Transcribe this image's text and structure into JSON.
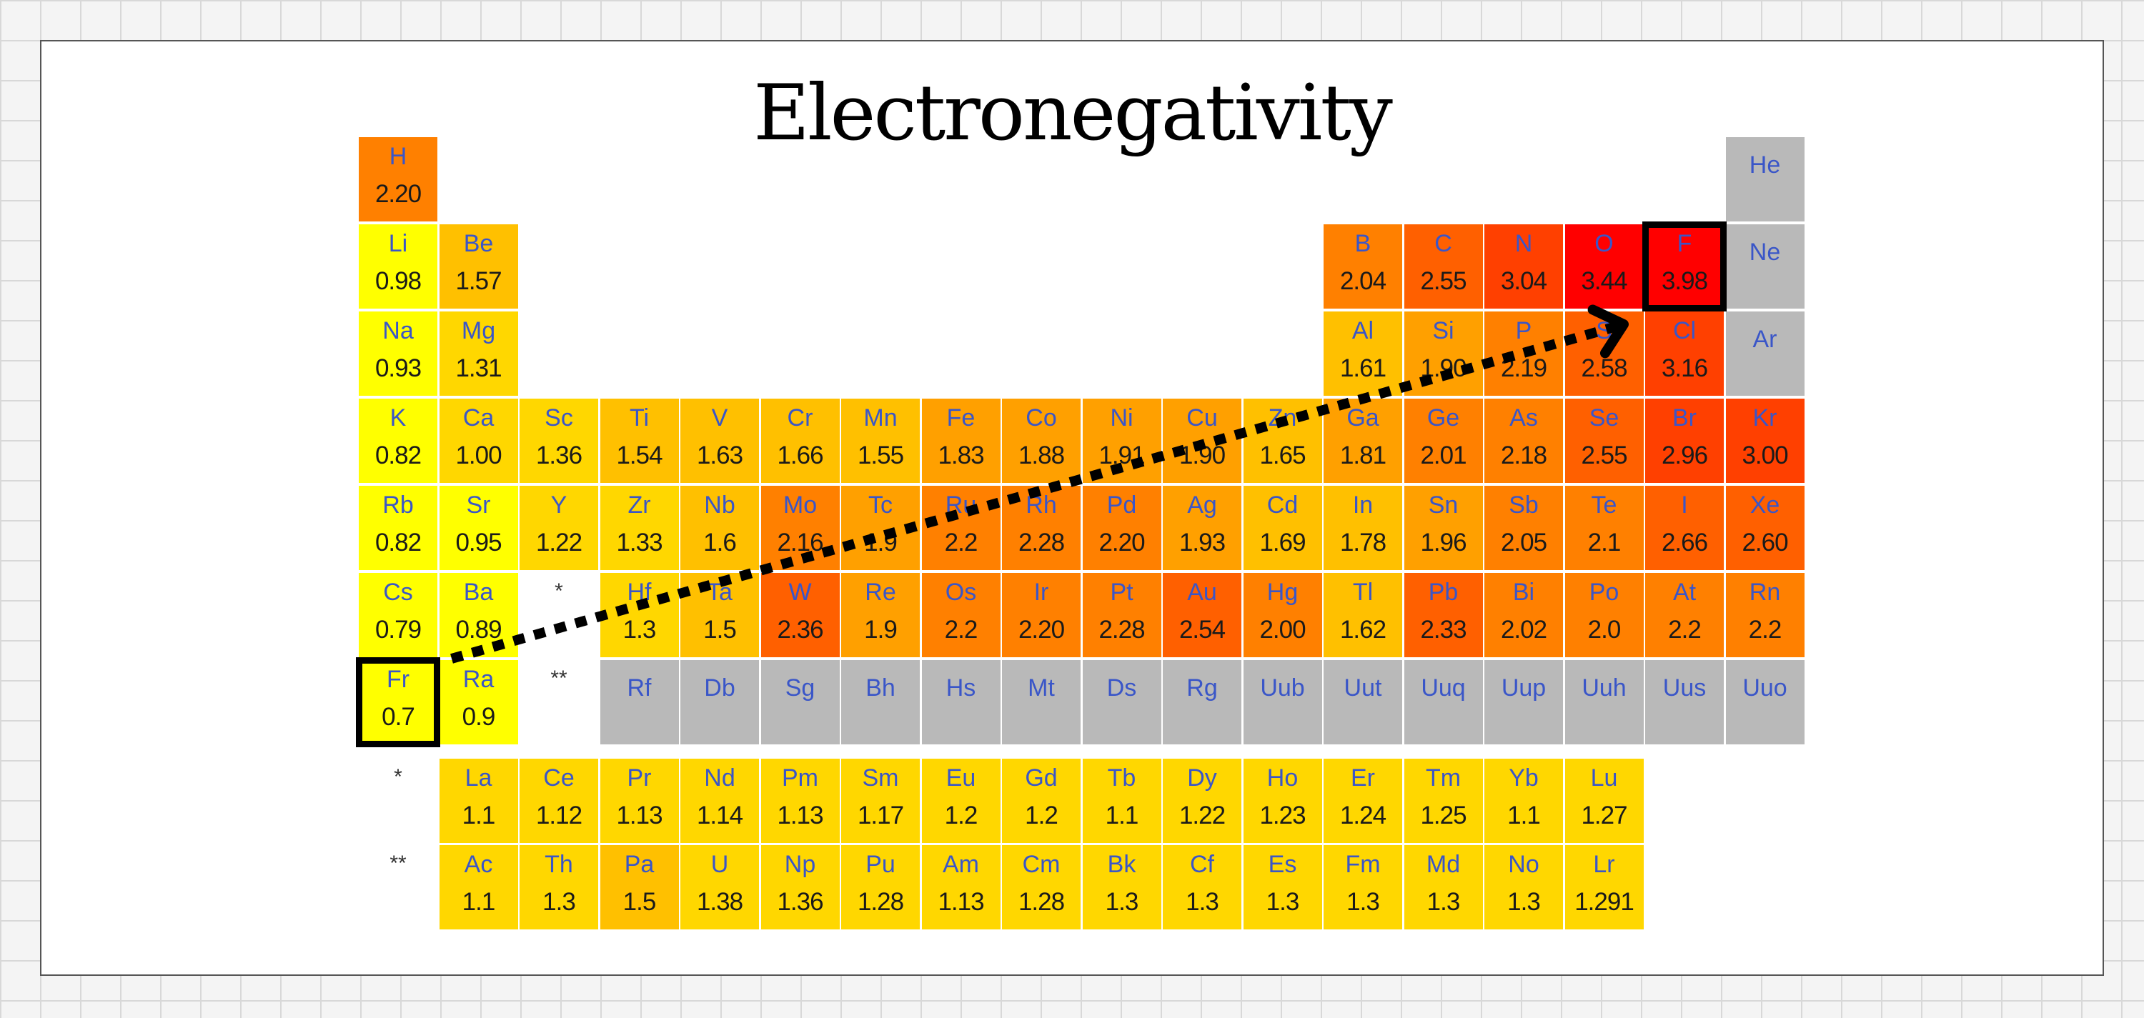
{
  "title": "Electronegativity",
  "colors": {
    "no_data": "#b9b9b9",
    "symbol_text": "#3a56c8",
    "value_text": "#1a1a1a",
    "scale": [
      "#ffff00",
      "#ffd700",
      "#ffc000",
      "#ffa000",
      "#ff8000",
      "#ff6000",
      "#ff4000",
      "#ff0000"
    ]
  },
  "markers": {
    "lanthanide": "*",
    "actinide": "**"
  },
  "highlights": [
    "Fr",
    "F"
  ],
  "arrow": {
    "from": "Fr",
    "to": "F",
    "style": "dotted"
  },
  "elements": [
    {
      "s": "H",
      "v": "2.20",
      "r": 1,
      "c": 1
    },
    {
      "s": "He",
      "v": "",
      "r": 1,
      "c": 18
    },
    {
      "s": "Li",
      "v": "0.98",
      "r": 2,
      "c": 1
    },
    {
      "s": "Be",
      "v": "1.57",
      "r": 2,
      "c": 2
    },
    {
      "s": "B",
      "v": "2.04",
      "r": 2,
      "c": 13
    },
    {
      "s": "C",
      "v": "2.55",
      "r": 2,
      "c": 14
    },
    {
      "s": "N",
      "v": "3.04",
      "r": 2,
      "c": 15
    },
    {
      "s": "O",
      "v": "3.44",
      "r": 2,
      "c": 16
    },
    {
      "s": "F",
      "v": "3.98",
      "r": 2,
      "c": 17
    },
    {
      "s": "Ne",
      "v": "",
      "r": 2,
      "c": 18
    },
    {
      "s": "Na",
      "v": "0.93",
      "r": 3,
      "c": 1
    },
    {
      "s": "Mg",
      "v": "1.31",
      "r": 3,
      "c": 2
    },
    {
      "s": "Al",
      "v": "1.61",
      "r": 3,
      "c": 13
    },
    {
      "s": "Si",
      "v": "1.90",
      "r": 3,
      "c": 14
    },
    {
      "s": "P",
      "v": "2.19",
      "r": 3,
      "c": 15
    },
    {
      "s": "S",
      "v": "2.58",
      "r": 3,
      "c": 16
    },
    {
      "s": "Cl",
      "v": "3.16",
      "r": 3,
      "c": 17
    },
    {
      "s": "Ar",
      "v": "",
      "r": 3,
      "c": 18
    },
    {
      "s": "K",
      "v": "0.82",
      "r": 4,
      "c": 1
    },
    {
      "s": "Ca",
      "v": "1.00",
      "r": 4,
      "c": 2
    },
    {
      "s": "Sc",
      "v": "1.36",
      "r": 4,
      "c": 3
    },
    {
      "s": "Ti",
      "v": "1.54",
      "r": 4,
      "c": 4
    },
    {
      "s": "V",
      "v": "1.63",
      "r": 4,
      "c": 5
    },
    {
      "s": "Cr",
      "v": "1.66",
      "r": 4,
      "c": 6
    },
    {
      "s": "Mn",
      "v": "1.55",
      "r": 4,
      "c": 7
    },
    {
      "s": "Fe",
      "v": "1.83",
      "r": 4,
      "c": 8
    },
    {
      "s": "Co",
      "v": "1.88",
      "r": 4,
      "c": 9
    },
    {
      "s": "Ni",
      "v": "1.91",
      "r": 4,
      "c": 10
    },
    {
      "s": "Cu",
      "v": "1.90",
      "r": 4,
      "c": 11
    },
    {
      "s": "Zn",
      "v": "1.65",
      "r": 4,
      "c": 12
    },
    {
      "s": "Ga",
      "v": "1.81",
      "r": 4,
      "c": 13
    },
    {
      "s": "Ge",
      "v": "2.01",
      "r": 4,
      "c": 14
    },
    {
      "s": "As",
      "v": "2.18",
      "r": 4,
      "c": 15
    },
    {
      "s": "Se",
      "v": "2.55",
      "r": 4,
      "c": 16
    },
    {
      "s": "Br",
      "v": "2.96",
      "r": 4,
      "c": 17
    },
    {
      "s": "Kr",
      "v": "3.00",
      "r": 4,
      "c": 18
    },
    {
      "s": "Rb",
      "v": "0.82",
      "r": 5,
      "c": 1
    },
    {
      "s": "Sr",
      "v": "0.95",
      "r": 5,
      "c": 2
    },
    {
      "s": "Y",
      "v": "1.22",
      "r": 5,
      "c": 3
    },
    {
      "s": "Zr",
      "v": "1.33",
      "r": 5,
      "c": 4
    },
    {
      "s": "Nb",
      "v": "1.6",
      "r": 5,
      "c": 5
    },
    {
      "s": "Mo",
      "v": "2.16",
      "r": 5,
      "c": 6
    },
    {
      "s": "Tc",
      "v": "1.9",
      "r": 5,
      "c": 7
    },
    {
      "s": "Ru",
      "v": "2.2",
      "r": 5,
      "c": 8
    },
    {
      "s": "Rh",
      "v": "2.28",
      "r": 5,
      "c": 9
    },
    {
      "s": "Pd",
      "v": "2.20",
      "r": 5,
      "c": 10
    },
    {
      "s": "Ag",
      "v": "1.93",
      "r": 5,
      "c": 11
    },
    {
      "s": "Cd",
      "v": "1.69",
      "r": 5,
      "c": 12
    },
    {
      "s": "In",
      "v": "1.78",
      "r": 5,
      "c": 13
    },
    {
      "s": "Sn",
      "v": "1.96",
      "r": 5,
      "c": 14
    },
    {
      "s": "Sb",
      "v": "2.05",
      "r": 5,
      "c": 15
    },
    {
      "s": "Te",
      "v": "2.1",
      "r": 5,
      "c": 16
    },
    {
      "s": "I",
      "v": "2.66",
      "r": 5,
      "c": 17
    },
    {
      "s": "Xe",
      "v": "2.60",
      "r": 5,
      "c": 18
    },
    {
      "s": "Cs",
      "v": "0.79",
      "r": 6,
      "c": 1
    },
    {
      "s": "Ba",
      "v": "0.89",
      "r": 6,
      "c": 2
    },
    {
      "s": "Hf",
      "v": "1.3",
      "r": 6,
      "c": 4
    },
    {
      "s": "Ta",
      "v": "1.5",
      "r": 6,
      "c": 5
    },
    {
      "s": "W",
      "v": "2.36",
      "r": 6,
      "c": 6
    },
    {
      "s": "Re",
      "v": "1.9",
      "r": 6,
      "c": 7
    },
    {
      "s": "Os",
      "v": "2.2",
      "r": 6,
      "c": 8
    },
    {
      "s": "Ir",
      "v": "2.20",
      "r": 6,
      "c": 9
    },
    {
      "s": "Pt",
      "v": "2.28",
      "r": 6,
      "c": 10
    },
    {
      "s": "Au",
      "v": "2.54",
      "r": 6,
      "c": 11
    },
    {
      "s": "Hg",
      "v": "2.00",
      "r": 6,
      "c": 12
    },
    {
      "s": "Tl",
      "v": "1.62",
      "r": 6,
      "c": 13
    },
    {
      "s": "Pb",
      "v": "2.33",
      "r": 6,
      "c": 14
    },
    {
      "s": "Bi",
      "v": "2.02",
      "r": 6,
      "c": 15
    },
    {
      "s": "Po",
      "v": "2.0",
      "r": 6,
      "c": 16
    },
    {
      "s": "At",
      "v": "2.2",
      "r": 6,
      "c": 17
    },
    {
      "s": "Rn",
      "v": "2.2",
      "r": 6,
      "c": 18
    },
    {
      "s": "Fr",
      "v": "0.7",
      "r": 7,
      "c": 1
    },
    {
      "s": "Ra",
      "v": "0.9",
      "r": 7,
      "c": 2
    },
    {
      "s": "Rf",
      "v": "",
      "r": 7,
      "c": 4
    },
    {
      "s": "Db",
      "v": "",
      "r": 7,
      "c": 5
    },
    {
      "s": "Sg",
      "v": "",
      "r": 7,
      "c": 6
    },
    {
      "s": "Bh",
      "v": "",
      "r": 7,
      "c": 7
    },
    {
      "s": "Hs",
      "v": "",
      "r": 7,
      "c": 8
    },
    {
      "s": "Mt",
      "v": "",
      "r": 7,
      "c": 9
    },
    {
      "s": "Ds",
      "v": "",
      "r": 7,
      "c": 10
    },
    {
      "s": "Rg",
      "v": "",
      "r": 7,
      "c": 11
    },
    {
      "s": "Uub",
      "v": "",
      "r": 7,
      "c": 12
    },
    {
      "s": "Uut",
      "v": "",
      "r": 7,
      "c": 13
    },
    {
      "s": "Uuq",
      "v": "",
      "r": 7,
      "c": 14
    },
    {
      "s": "Uup",
      "v": "",
      "r": 7,
      "c": 15
    },
    {
      "s": "Uuh",
      "v": "",
      "r": 7,
      "c": 16
    },
    {
      "s": "Uus",
      "v": "",
      "r": 7,
      "c": 17
    },
    {
      "s": "Uuo",
      "v": "",
      "r": 7,
      "c": 18
    },
    {
      "s": "La",
      "v": "1.1",
      "r": 8,
      "c": 2
    },
    {
      "s": "Ce",
      "v": "1.12",
      "r": 8,
      "c": 3
    },
    {
      "s": "Pr",
      "v": "1.13",
      "r": 8,
      "c": 4
    },
    {
      "s": "Nd",
      "v": "1.14",
      "r": 8,
      "c": 5
    },
    {
      "s": "Pm",
      "v": "1.13",
      "r": 8,
      "c": 6
    },
    {
      "s": "Sm",
      "v": "1.17",
      "r": 8,
      "c": 7
    },
    {
      "s": "Eu",
      "v": "1.2",
      "r": 8,
      "c": 8
    },
    {
      "s": "Gd",
      "v": "1.2",
      "r": 8,
      "c": 9
    },
    {
      "s": "Tb",
      "v": "1.1",
      "r": 8,
      "c": 10
    },
    {
      "s": "Dy",
      "v": "1.22",
      "r": 8,
      "c": 11
    },
    {
      "s": "Ho",
      "v": "1.23",
      "r": 8,
      "c": 12
    },
    {
      "s": "Er",
      "v": "1.24",
      "r": 8,
      "c": 13
    },
    {
      "s": "Tm",
      "v": "1.25",
      "r": 8,
      "c": 14
    },
    {
      "s": "Yb",
      "v": "1.1",
      "r": 8,
      "c": 15
    },
    {
      "s": "Lu",
      "v": "1.27",
      "r": 8,
      "c": 16
    },
    {
      "s": "Ac",
      "v": "1.1",
      "r": 9,
      "c": 2
    },
    {
      "s": "Th",
      "v": "1.3",
      "r": 9,
      "c": 3
    },
    {
      "s": "Pa",
      "v": "1.5",
      "r": 9,
      "c": 4
    },
    {
      "s": "U",
      "v": "1.38",
      "r": 9,
      "c": 5
    },
    {
      "s": "Np",
      "v": "1.36",
      "r": 9,
      "c": 6
    },
    {
      "s": "Pu",
      "v": "1.28",
      "r": 9,
      "c": 7
    },
    {
      "s": "Am",
      "v": "1.13",
      "r": 9,
      "c": 8
    },
    {
      "s": "Cm",
      "v": "1.28",
      "r": 9,
      "c": 9
    },
    {
      "s": "Bk",
      "v": "1.3",
      "r": 9,
      "c": 10
    },
    {
      "s": "Cf",
      "v": "1.3",
      "r": 9,
      "c": 11
    },
    {
      "s": "Es",
      "v": "1.3",
      "r": 9,
      "c": 12
    },
    {
      "s": "Fm",
      "v": "1.3",
      "r": 9,
      "c": 13
    },
    {
      "s": "Md",
      "v": "1.3",
      "r": 9,
      "c": 14
    },
    {
      "s": "No",
      "v": "1.3",
      "r": 9,
      "c": 15
    },
    {
      "s": "Lr",
      "v": "1.291",
      "r": 9,
      "c": 16
    }
  ]
}
